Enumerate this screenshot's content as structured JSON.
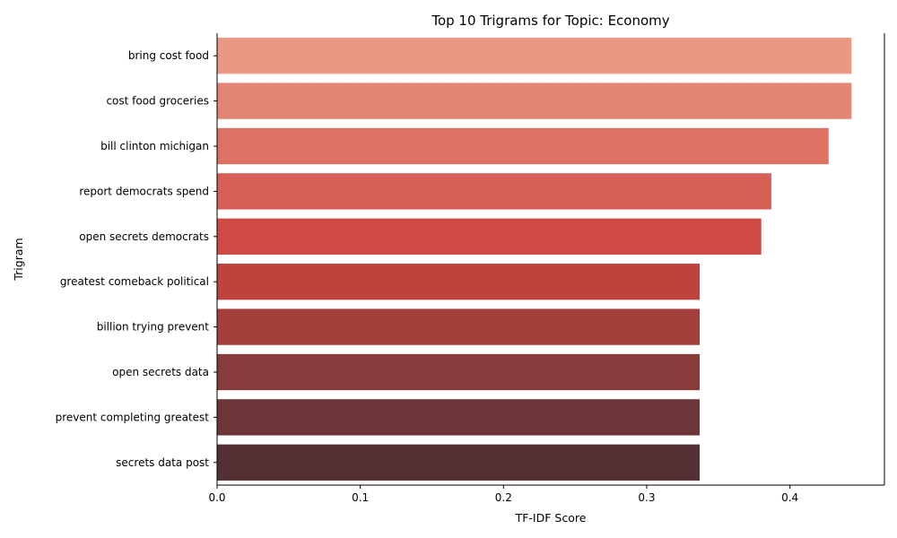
{
  "chart_data": {
    "type": "bar",
    "orientation": "horizontal",
    "title": "Top 10 Trigrams for Topic: Economy",
    "xlabel": "TF-IDF Score",
    "ylabel": "Trigram",
    "xlim": [
      0,
      0.466
    ],
    "xticks": [
      "0.0",
      "0.1",
      "0.2",
      "0.3",
      "0.4"
    ],
    "categories": [
      "bring cost food",
      "cost food groceries",
      "bill clinton michigan",
      "report democrats spend",
      "open secrets democrats",
      "greatest comeback political",
      "billion trying prevent",
      "open secrets data",
      "prevent completing greatest",
      "secrets data post"
    ],
    "values": [
      0.443,
      0.443,
      0.427,
      0.387,
      0.38,
      0.337,
      0.337,
      0.337,
      0.337,
      0.337
    ],
    "colors": [
      "#e99883",
      "#e38574",
      "#de7262",
      "#d75f55",
      "#cf4a42",
      "#bd433c",
      "#a43f3c",
      "#883b3b",
      "#6c3537",
      "#523034"
    ],
    "grid": false,
    "legend": "none"
  }
}
